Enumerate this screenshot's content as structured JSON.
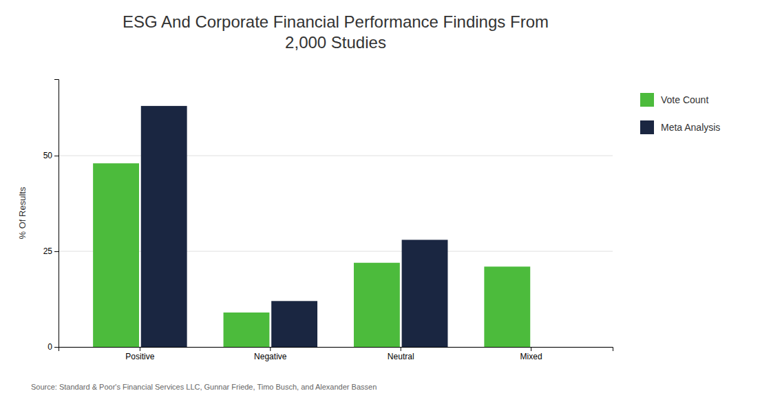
{
  "chart_data": {
    "type": "bar",
    "title": "ESG And Corporate Financial Performance Findings From\n2,000 Studies",
    "y_label": "% Of Results",
    "categories": [
      "Positive",
      "Negative",
      "Neutral",
      "Mixed"
    ],
    "series": [
      {
        "name": "Vote Count",
        "color": "#4cbb3c",
        "values": [
          48,
          9,
          22,
          21
        ]
      },
      {
        "name": "Meta Analysis",
        "color": "#1a2641",
        "values": [
          63,
          12,
          28,
          null
        ]
      }
    ],
    "ylim": [
      0,
      70
    ],
    "yticks": [
      0,
      25,
      50
    ],
    "grid": true,
    "legend": "right",
    "annotations": [
      "Source: Standard & Poor's Financial Services LLC, Gunnar Friede, Timo Busch, and Alexander Bassen"
    ]
  }
}
